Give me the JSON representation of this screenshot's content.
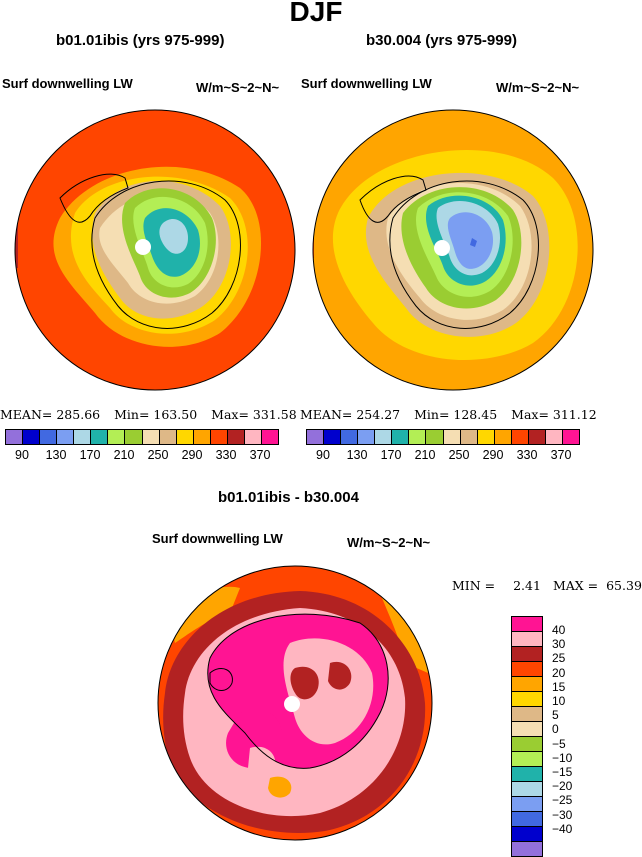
{
  "figure_title": "DJF",
  "left_panel": {
    "title": "b01.01ibis (yrs 975-999)",
    "variable": "Surf downwelling LW",
    "units": "W/m~S~2~N~",
    "mean_label": "MEAN=",
    "mean_value": "285.66",
    "min_label": "Min=",
    "min_value": "163.50",
    "max_label": "Max=",
    "max_value": "331.58"
  },
  "right_panel": {
    "title": "b30.004 (yrs 975-999)",
    "variable": "Surf downwelling LW",
    "units": "W/m~S~2~N~",
    "mean_label": "MEAN=",
    "mean_value": "254.27",
    "min_label": "Min=",
    "min_value": "128.45",
    "max_label": "Max=",
    "max_value": "311.12"
  },
  "abs_colorbar": {
    "colors": [
      "#9370db",
      "#0000cd",
      "#4169e1",
      "#7b9ef2",
      "#add8e6",
      "#20b2aa",
      "#b3ee55",
      "#9acd32",
      "#f5deb3",
      "#deb887",
      "#ffd700",
      "#ffa500",
      "#ff4500",
      "#b22222",
      "#ffb6c1",
      "#ff1493"
    ],
    "tick_labels": [
      "90",
      "130",
      "170",
      "210",
      "250",
      "290",
      "330",
      "370"
    ]
  },
  "diff_panel": {
    "title": "b01.01ibis - b30.004",
    "variable": "Surf downwelling LW",
    "units": "W/m~S~2~N~",
    "min_label": "MIN =",
    "min_value": "2.41",
    "max_label": "MAX =",
    "max_value": "65.39"
  },
  "diff_colorbar": {
    "colors": [
      "#ff1493",
      "#ffb6c1",
      "#b22222",
      "#ff4500",
      "#ffa500",
      "#ffd700",
      "#deb887",
      "#f5deb3",
      "#9acd32",
      "#b3ee55",
      "#20b2aa",
      "#add8e6",
      "#7b9ef2",
      "#4169e1",
      "#0000cd",
      "#9370db"
    ],
    "labels": [
      "40",
      "30",
      "25",
      "20",
      "15",
      "10",
      "5",
      "0",
      "−5",
      "−10",
      "−15",
      "−20",
      "−25",
      "−30",
      "−40"
    ]
  },
  "map_colors": {
    "ocean_left": "#ff4500",
    "ocean_right": "#ffa500",
    "diff_outer": "#ff4500"
  }
}
